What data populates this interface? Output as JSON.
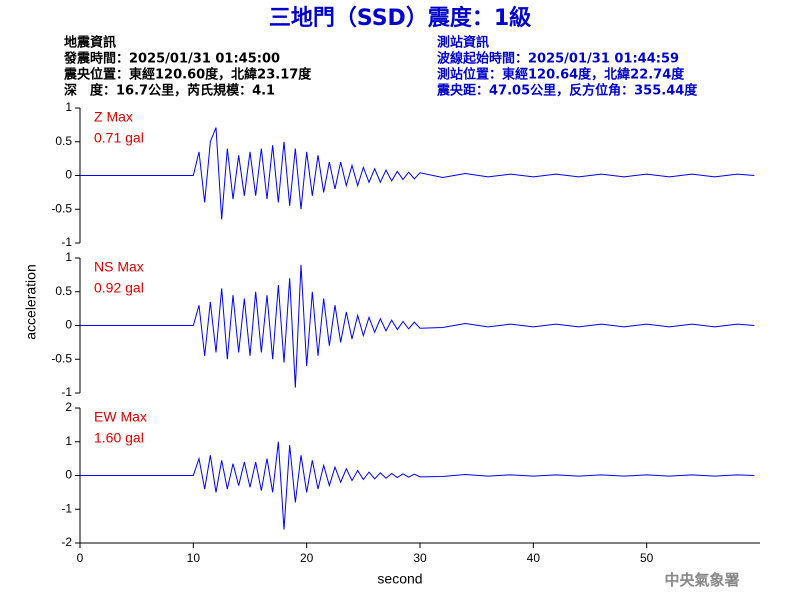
{
  "title": "三地門（SSD）震度：1級",
  "header": {
    "left": [
      "地震資訊",
      "發震時間：2025/01/31 01:45:00",
      "震央位置：東經120.60度，北緯23.17度",
      "深　度：16.7公里，芮氏規模：4.1"
    ],
    "right": [
      "測站資訊",
      "波線起始時間：2025/01/31 01:44:59",
      "測站位置：東經120.64度，北緯22.74度",
      "震央距：47.05公里，反方位角：355.44度"
    ]
  },
  "ylabel": "acceleration",
  "footer": "中央氣象署",
  "chart_data": [
    {
      "type": "line",
      "annotations": [
        "Z Max",
        "0.71 gal"
      ],
      "xlim": [
        0,
        60
      ],
      "ylim": [
        -1,
        1
      ],
      "yticks": [
        -1,
        -0.5,
        0,
        0.5,
        1
      ],
      "x": [
        0,
        2,
        4,
        6,
        8,
        10,
        10.5,
        11,
        11.5,
        12,
        12.5,
        13,
        13.5,
        14,
        14.5,
        15,
        15.5,
        16,
        16.5,
        17,
        17.5,
        18,
        18.5,
        19,
        19.5,
        20,
        20.5,
        21,
        21.5,
        22,
        22.5,
        23,
        23.5,
        24,
        24.5,
        25,
        25.5,
        26,
        26.5,
        27,
        27.5,
        28,
        28.5,
        29,
        29.5,
        30,
        32,
        34,
        36,
        38,
        40,
        42,
        44,
        46,
        48,
        50,
        52,
        54,
        56,
        58,
        59.5
      ],
      "series": [
        {
          "color": "#0000ff",
          "values": [
            0,
            0,
            0,
            0,
            0,
            0,
            0.35,
            -0.4,
            0.5,
            0.71,
            -0.65,
            0.4,
            -0.35,
            0.3,
            -0.3,
            0.35,
            -0.3,
            0.4,
            -0.35,
            0.45,
            -0.4,
            0.5,
            -0.45,
            0.4,
            -0.5,
            0.35,
            -0.3,
            0.3,
            -0.25,
            0.2,
            -0.2,
            0.2,
            -0.15,
            0.15,
            -0.15,
            0.12,
            -0.1,
            0.1,
            -0.1,
            0.08,
            -0.08,
            0.06,
            -0.06,
            0.05,
            -0.05,
            0.04,
            -0.03,
            0.03,
            -0.02,
            0.02,
            -0.02,
            0.02,
            -0.02,
            0.02,
            -0.02,
            0.02,
            -0.02,
            0.02,
            -0.02,
            0.02,
            0
          ]
        }
      ]
    },
    {
      "type": "line",
      "annotations": [
        "NS Max",
        "0.92 gal"
      ],
      "xlim": [
        0,
        60
      ],
      "ylim": [
        -1,
        1
      ],
      "yticks": [
        -1,
        -0.5,
        0,
        0.5,
        1
      ],
      "x": [
        0,
        2,
        4,
        6,
        8,
        10,
        10.5,
        11,
        11.5,
        12,
        12.5,
        13,
        13.5,
        14,
        14.5,
        15,
        15.5,
        16,
        16.5,
        17,
        17.5,
        18,
        18.5,
        19,
        19.5,
        20,
        20.5,
        21,
        21.5,
        22,
        22.5,
        23,
        23.5,
        24,
        24.5,
        25,
        25.5,
        26,
        26.5,
        27,
        27.5,
        28,
        28.5,
        29,
        29.5,
        30,
        32,
        34,
        36,
        38,
        40,
        42,
        44,
        46,
        48,
        50,
        52,
        54,
        56,
        58,
        59.5
      ],
      "series": [
        {
          "color": "#0000ff",
          "values": [
            0,
            0,
            0,
            0,
            0,
            0,
            0.3,
            -0.45,
            0.35,
            -0.4,
            0.55,
            -0.5,
            0.45,
            -0.4,
            0.4,
            -0.45,
            0.5,
            -0.4,
            0.45,
            -0.5,
            0.6,
            -0.55,
            0.7,
            -0.92,
            0.9,
            -0.6,
            0.5,
            -0.45,
            0.4,
            -0.3,
            0.3,
            -0.25,
            0.2,
            -0.2,
            0.15,
            -0.15,
            0.12,
            -0.1,
            0.1,
            -0.08,
            0.08,
            -0.06,
            0.06,
            -0.05,
            0.05,
            -0.04,
            -0.03,
            0.03,
            -0.02,
            0.02,
            -0.02,
            0.02,
            -0.02,
            0.02,
            -0.02,
            0.02,
            -0.02,
            0.02,
            -0.02,
            0.02,
            0
          ]
        }
      ]
    },
    {
      "type": "line",
      "annotations": [
        "EW Max",
        "1.60 gal"
      ],
      "xlim": [
        0,
        60
      ],
      "ylim": [
        -2,
        2
      ],
      "yticks": [
        -2,
        -1,
        0,
        1,
        2
      ],
      "xticks": [
        0,
        10,
        20,
        30,
        40,
        50
      ],
      "xlabel": "second",
      "x": [
        0,
        2,
        4,
        6,
        8,
        10,
        10.5,
        11,
        11.5,
        12,
        12.5,
        13,
        13.5,
        14,
        14.5,
        15,
        15.5,
        16,
        16.5,
        17,
        17.5,
        18,
        18.5,
        19,
        19.5,
        20,
        20.5,
        21,
        21.5,
        22,
        22.5,
        23,
        23.5,
        24,
        24.5,
        25,
        25.5,
        26,
        26.5,
        27,
        27.5,
        28,
        28.5,
        29,
        29.5,
        30,
        32,
        34,
        36,
        38,
        40,
        42,
        44,
        46,
        48,
        50,
        52,
        54,
        56,
        58,
        59.5
      ],
      "series": [
        {
          "color": "#0000ff",
          "values": [
            0,
            0,
            0,
            0,
            0,
            0,
            0.5,
            -0.4,
            0.6,
            -0.5,
            0.45,
            -0.4,
            0.35,
            -0.3,
            0.4,
            -0.35,
            0.4,
            -0.45,
            0.5,
            -0.5,
            1.0,
            -1.6,
            0.9,
            -0.8,
            0.6,
            -0.5,
            0.45,
            -0.4,
            0.3,
            -0.3,
            0.25,
            -0.2,
            0.2,
            -0.15,
            0.15,
            -0.12,
            0.1,
            -0.1,
            0.08,
            -0.08,
            0.06,
            -0.06,
            0.05,
            -0.05,
            0.04,
            -0.04,
            -0.03,
            0.03,
            -0.02,
            0.02,
            -0.02,
            0.02,
            -0.02,
            0.02,
            -0.02,
            0.02,
            -0.02,
            0.02,
            -0.02,
            0.02,
            0
          ]
        }
      ]
    }
  ]
}
